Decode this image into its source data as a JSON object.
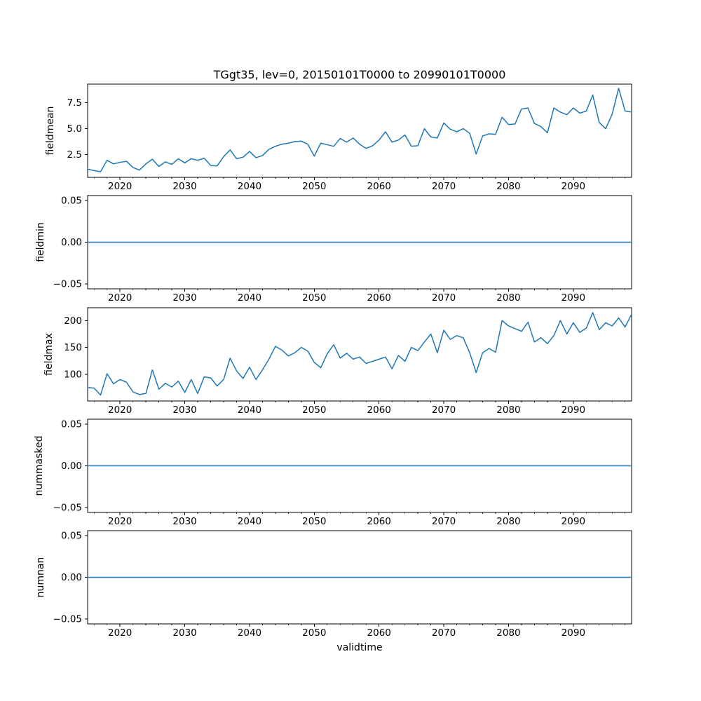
{
  "title": "TGgt35, lev=0, 20150101T0000 to 20990101T0000",
  "xlabel": "validtime",
  "line_color": "#1f77b4",
  "axis_color": "#000000",
  "x_range": [
    2015,
    2099
  ],
  "x_major_ticks": [
    2020,
    2030,
    2040,
    2050,
    2060,
    2070,
    2080,
    2090
  ],
  "x_minor_step": 2,
  "chart_data": [
    {
      "type": "line",
      "name": "fieldmean",
      "ylabel": "fieldmean",
      "x_start": 2015,
      "x_step": 1,
      "ylim": [
        0.3,
        9.3
      ],
      "yticks": [
        2.5,
        5.0,
        7.5
      ],
      "ytick_labels": [
        "2.5",
        "5.0",
        "7.5"
      ],
      "values": [
        1.1,
        0.95,
        0.85,
        1.95,
        1.6,
        1.75,
        1.85,
        1.25,
        1.0,
        1.6,
        2.05,
        1.35,
        1.8,
        1.55,
        2.1,
        1.7,
        2.1,
        1.95,
        2.15,
        1.45,
        1.4,
        2.3,
        2.95,
        2.1,
        2.25,
        2.8,
        2.2,
        2.4,
        3.0,
        3.3,
        3.5,
        3.6,
        3.75,
        3.8,
        3.5,
        2.35,
        3.6,
        3.45,
        3.3,
        4.05,
        3.7,
        4.1,
        3.5,
        3.1,
        3.35,
        3.9,
        4.7,
        3.7,
        3.9,
        4.4,
        3.3,
        3.35,
        5.0,
        4.2,
        4.1,
        5.55,
        4.95,
        4.7,
        5.0,
        4.55,
        2.55,
        4.3,
        4.5,
        4.45,
        6.1,
        5.4,
        5.45,
        6.9,
        7.0,
        5.5,
        5.2,
        4.6,
        7.0,
        6.6,
        6.35,
        7.0,
        6.5,
        6.7,
        8.25,
        5.6,
        5.0,
        6.4,
        8.9,
        6.7,
        6.6
      ]
    },
    {
      "type": "line",
      "name": "fieldmin",
      "ylabel": "fieldmin",
      "x_start": 2015,
      "x_step": 1,
      "ylim": [
        -0.056,
        0.056
      ],
      "yticks": [
        -0.05,
        0.0,
        0.05
      ],
      "ytick_labels": [
        "−0.05",
        "0.00",
        "0.05"
      ],
      "constant": 0
    },
    {
      "type": "line",
      "name": "fieldmax",
      "ylabel": "fieldmax",
      "x_start": 2015,
      "x_step": 1,
      "ylim": [
        50,
        224
      ],
      "yticks": [
        100,
        150,
        200
      ],
      "ytick_labels": [
        "100",
        "150",
        "200"
      ],
      "values": [
        75,
        74,
        61,
        101,
        82,
        90,
        85,
        67,
        62,
        64,
        108,
        72,
        83,
        76,
        87,
        66,
        90,
        64,
        95,
        93,
        78,
        90,
        130,
        106,
        92,
        113,
        90,
        108,
        128,
        152,
        145,
        134,
        140,
        150,
        143,
        122,
        112,
        138,
        155,
        130,
        139,
        128,
        132,
        120,
        124,
        128,
        132,
        110,
        135,
        124,
        150,
        144,
        160,
        175,
        140,
        182,
        165,
        172,
        168,
        140,
        103,
        140,
        148,
        141,
        200,
        190,
        185,
        180,
        197,
        160,
        168,
        157,
        172,
        200,
        175,
        196,
        178,
        186,
        215,
        183,
        196,
        190,
        205,
        188,
        212
      ]
    },
    {
      "type": "line",
      "name": "nummasked",
      "ylabel": "nummasked",
      "x_start": 2015,
      "x_step": 1,
      "ylim": [
        -0.056,
        0.056
      ],
      "yticks": [
        -0.05,
        0.0,
        0.05
      ],
      "ytick_labels": [
        "−0.05",
        "0.00",
        "0.05"
      ],
      "constant": 0
    },
    {
      "type": "line",
      "name": "numnan",
      "ylabel": "numnan",
      "x_start": 2015,
      "x_step": 1,
      "ylim": [
        -0.056,
        0.056
      ],
      "yticks": [
        -0.05,
        0.0,
        0.05
      ],
      "ytick_labels": [
        "−0.05",
        "0.00",
        "0.05"
      ],
      "constant": 0
    }
  ]
}
